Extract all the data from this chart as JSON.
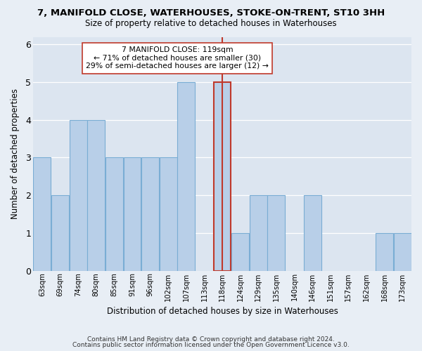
{
  "title": "7, MANIFOLD CLOSE, WATERHOUSES, STOKE-ON-TRENT, ST10 3HH",
  "subtitle": "Size of property relative to detached houses in Waterhouses",
  "xlabel": "Distribution of detached houses by size in Waterhouses",
  "ylabel": "Number of detached properties",
  "categories": [
    "63sqm",
    "69sqm",
    "74sqm",
    "80sqm",
    "85sqm",
    "91sqm",
    "96sqm",
    "102sqm",
    "107sqm",
    "113sqm",
    "118sqm",
    "124sqm",
    "129sqm",
    "135sqm",
    "140sqm",
    "146sqm",
    "151sqm",
    "157sqm",
    "162sqm",
    "168sqm",
    "173sqm"
  ],
  "values": [
    3,
    2,
    4,
    4,
    3,
    3,
    3,
    3,
    5,
    0,
    5,
    1,
    2,
    2,
    0,
    2,
    0,
    0,
    0,
    1,
    1
  ],
  "highlight_index": 10,
  "bar_color": "#b8cfe8",
  "bar_edge_color": "#7aadd4",
  "highlight_edge_color": "#c0392b",
  "property_line_index": 10,
  "property_line_color": "#c0392b",
  "annotation_text": "7 MANIFOLD CLOSE: 119sqm\n← 71% of detached houses are smaller (30)\n29% of semi-detached houses are larger (12) →",
  "annotation_box_color": "#ffffff",
  "annotation_border_color": "#c0392b",
  "ylim": [
    0,
    6.2
  ],
  "yticks": [
    0,
    1,
    2,
    3,
    4,
    5,
    6
  ],
  "footer1": "Contains HM Land Registry data © Crown copyright and database right 2024.",
  "footer2": "Contains public sector information licensed under the Open Government Licence v3.0.",
  "bg_color": "#e8eef5",
  "plot_bg_color": "#dce5f0"
}
